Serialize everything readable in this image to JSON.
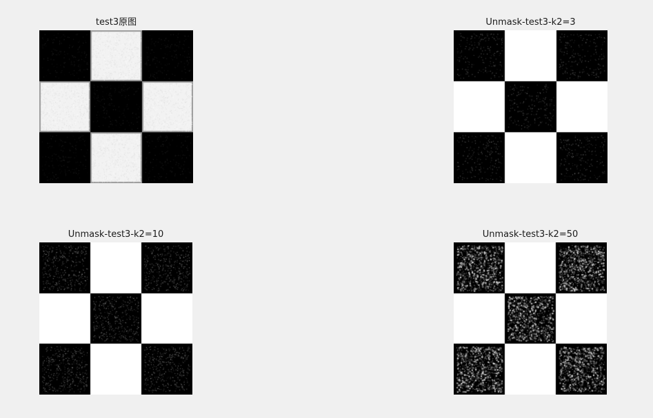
{
  "figure": {
    "background": "#f0f0f0",
    "panels": [
      {
        "id": "p1",
        "title": "test3原图",
        "variant": "original",
        "noise_level": 0.15
      },
      {
        "id": "p2",
        "title": "Unmask-test3-k2=3",
        "variant": "unmask",
        "noise_level": 0.18
      },
      {
        "id": "p3",
        "title": "Unmask-test3-k2=10",
        "variant": "unmask",
        "noise_level": 0.35
      },
      {
        "id": "p4",
        "title": "Unmask-test3-k2=50",
        "variant": "unmask",
        "noise_level": 0.75
      }
    ],
    "checkerboard": {
      "grid": 3,
      "pattern": [
        [
          0,
          1,
          0
        ],
        [
          1,
          0,
          1
        ],
        [
          0,
          1,
          0
        ]
      ],
      "light_color": "#ffffff",
      "dark_color": "#000000"
    }
  }
}
